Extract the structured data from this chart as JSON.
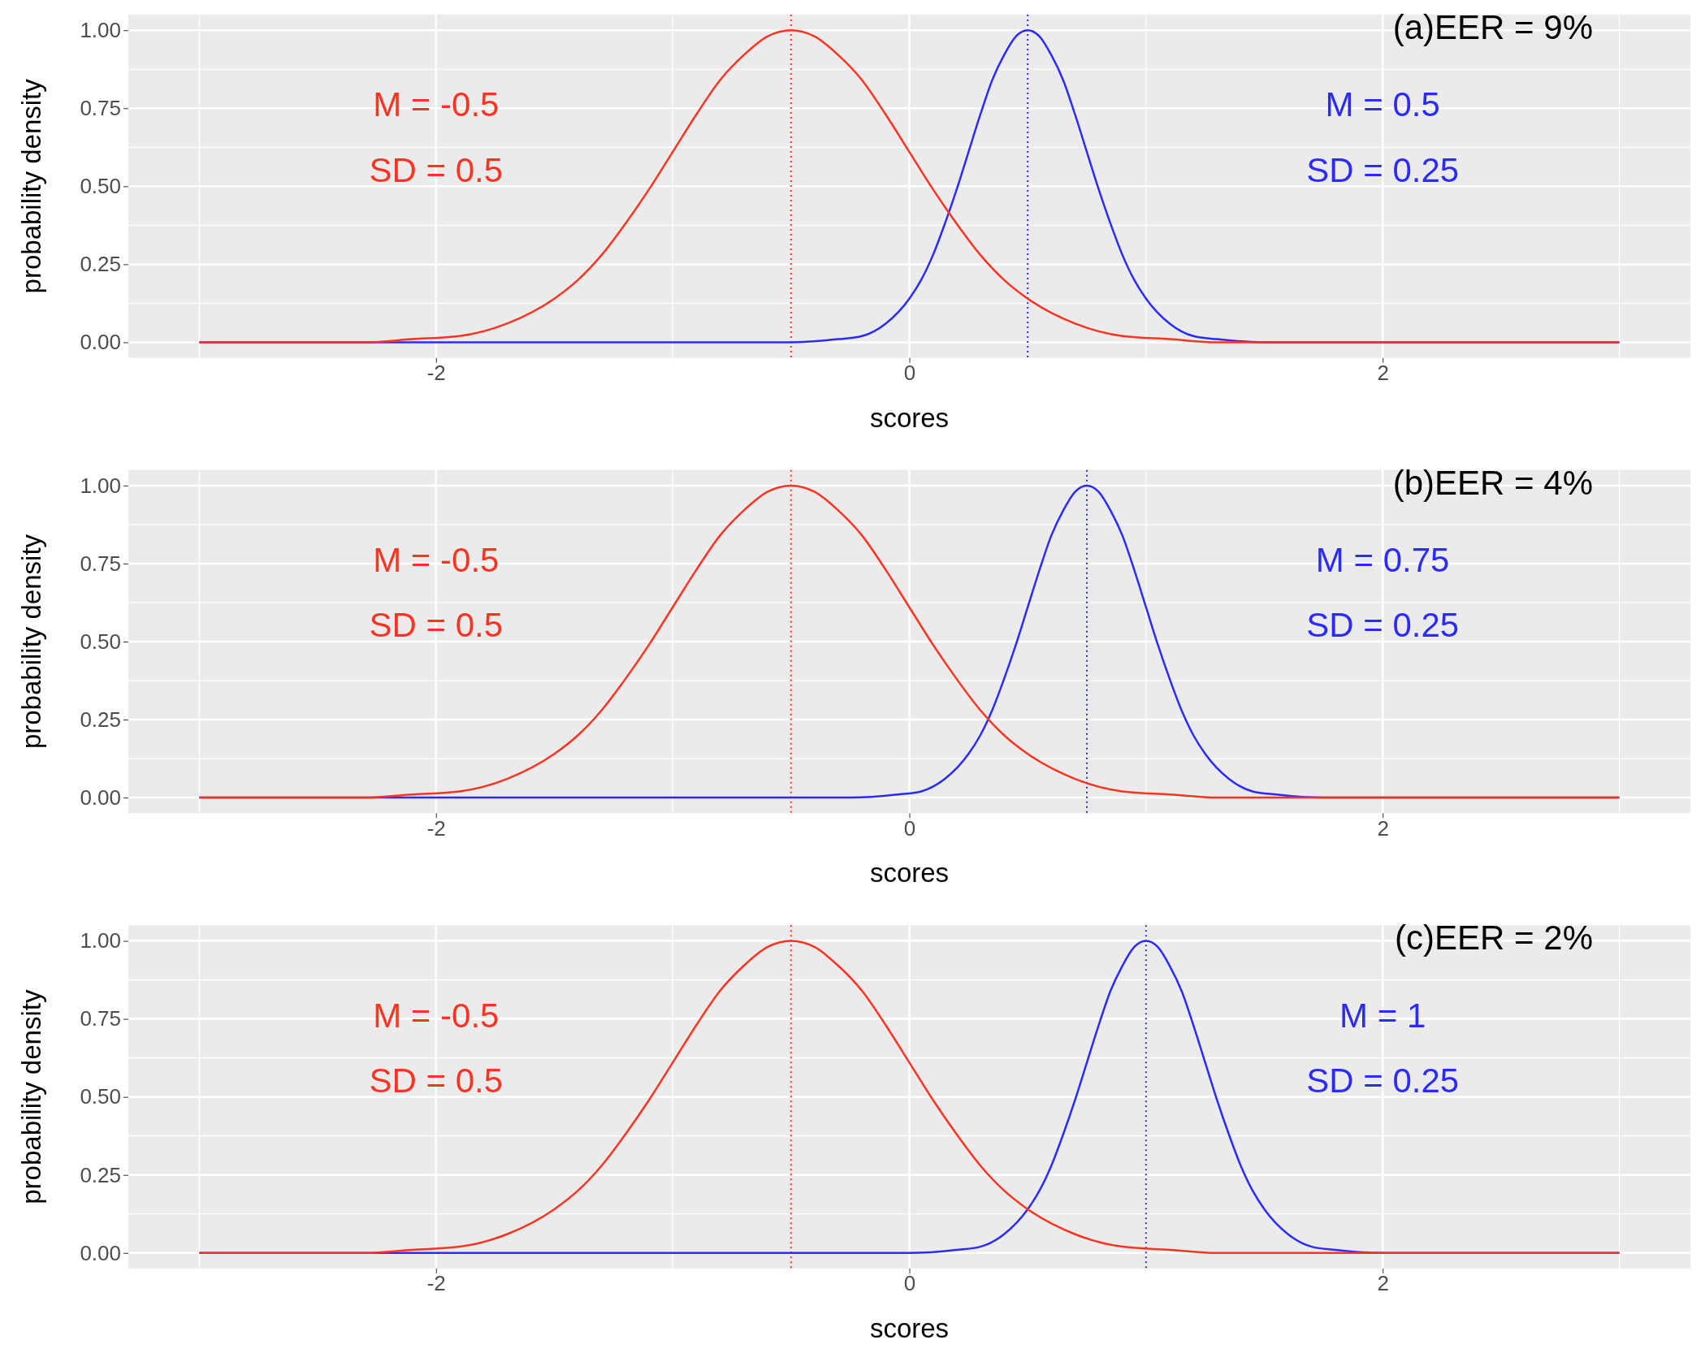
{
  "chart_data": [
    {
      "type": "line",
      "title": "(a)EER = 9%",
      "xlabel": "scores",
      "ylabel": "probability density",
      "xlim": [
        -3.3,
        3.3
      ],
      "xticks": [
        -2,
        0,
        2
      ],
      "ylim": [
        -0.05,
        1.05
      ],
      "yticks": [
        {
          "value": 0,
          "label": "0.00"
        },
        {
          "value": 0.25,
          "label": "0.25"
        },
        {
          "value": 0.5,
          "label": "0.50"
        },
        {
          "value": 0.75,
          "label": "0.75"
        },
        {
          "value": 1,
          "label": "1.00"
        }
      ],
      "grid": true,
      "line_style": "solid",
      "series": [
        {
          "color": "#2b2bff",
          "x": [
            -3,
            -0.5,
            -0.3,
            -0.2,
            -0.1,
            0,
            0.05,
            0.1,
            0.15,
            0.2,
            0.25,
            0.3,
            0.35,
            0.4,
            0.45,
            0.5,
            0.55,
            0.6,
            0.65,
            0.7,
            0.75,
            0.8,
            0.85,
            0.9,
            0.95,
            1.0,
            1.1,
            1.2,
            1.3,
            1.5,
            3
          ],
          "values": [
            0,
            0,
            0.01,
            0.02,
            0.06,
            0.14,
            0.2,
            0.28,
            0.38,
            0.49,
            0.61,
            0.73,
            0.84,
            0.92,
            0.98,
            1,
            0.98,
            0.92,
            0.84,
            0.73,
            0.61,
            0.49,
            0.38,
            0.28,
            0.2,
            0.14,
            0.06,
            0.02,
            0.01,
            0,
            0
          ]
        },
        {
          "color": "#ff3322",
          "x": [
            -3,
            -2.5,
            -2.3,
            -2.1,
            -1.9,
            -1.7,
            -1.5,
            -1.4,
            -1.3,
            -1.2,
            -1.1,
            -1.0,
            -0.9,
            -0.8,
            -0.7,
            -0.6,
            -0.5,
            -0.4,
            -0.3,
            -0.2,
            -0.1,
            0,
            0.1,
            0.2,
            0.3,
            0.4,
            0.5,
            0.7,
            0.9,
            1.1,
            1.3,
            1.5,
            3
          ],
          "values": [
            0,
            0,
            0,
            0.01,
            0.02,
            0.06,
            0.14,
            0.2,
            0.28,
            0.38,
            0.49,
            0.61,
            0.73,
            0.84,
            0.92,
            0.98,
            1,
            0.98,
            0.92,
            0.84,
            0.73,
            0.61,
            0.49,
            0.38,
            0.28,
            0.2,
            0.14,
            0.06,
            0.02,
            0.01,
            0,
            0,
            0
          ]
        }
      ],
      "ref_lines": [
        {
          "axis": "x",
          "value": -0.5,
          "color": "#ff3322",
          "line_style": "dotted"
        },
        {
          "axis": "x",
          "value": 0.5,
          "color": "#2b2bff",
          "line_style": "dotted"
        }
      ],
      "annotations": [
        "M = -0.5",
        "SD = 0.5",
        "M = 0.5",
        "SD = 0.25"
      ]
    },
    {
      "type": "line",
      "title": "(b)EER = 4%",
      "xlabel": "scores",
      "ylabel": "probability density",
      "xlim": [
        -3.3,
        3.3
      ],
      "xticks": [
        -2,
        0,
        2
      ],
      "ylim": [
        -0.05,
        1.05
      ],
      "yticks": [
        {
          "value": 0,
          "label": "0.00"
        },
        {
          "value": 0.25,
          "label": "0.25"
        },
        {
          "value": 0.5,
          "label": "0.50"
        },
        {
          "value": 0.75,
          "label": "0.75"
        },
        {
          "value": 1,
          "label": "1.00"
        }
      ],
      "grid": true,
      "line_style": "solid",
      "series": [
        {
          "color": "#2b2bff",
          "x": [
            -3,
            -0.25,
            -0.05,
            0.05,
            0.15,
            0.25,
            0.3,
            0.35,
            0.4,
            0.45,
            0.5,
            0.55,
            0.6,
            0.65,
            0.7,
            0.75,
            0.8,
            0.85,
            0.9,
            0.95,
            1.0,
            1.05,
            1.1,
            1.15,
            1.2,
            1.25,
            1.35,
            1.45,
            1.55,
            1.75,
            3
          ],
          "values": [
            0,
            0,
            0.01,
            0.02,
            0.06,
            0.14,
            0.2,
            0.28,
            0.38,
            0.49,
            0.61,
            0.73,
            0.84,
            0.92,
            0.98,
            1,
            0.98,
            0.92,
            0.84,
            0.73,
            0.61,
            0.49,
            0.38,
            0.28,
            0.2,
            0.14,
            0.06,
            0.02,
            0.01,
            0,
            0
          ]
        },
        {
          "color": "#ff3322",
          "x": [
            -3,
            -2.5,
            -2.3,
            -2.1,
            -1.9,
            -1.7,
            -1.5,
            -1.4,
            -1.3,
            -1.2,
            -1.1,
            -1.0,
            -0.9,
            -0.8,
            -0.7,
            -0.6,
            -0.5,
            -0.4,
            -0.3,
            -0.2,
            -0.1,
            0,
            0.1,
            0.2,
            0.3,
            0.4,
            0.5,
            0.7,
            0.9,
            1.1,
            1.3,
            1.5,
            3
          ],
          "values": [
            0,
            0,
            0,
            0.01,
            0.02,
            0.06,
            0.14,
            0.2,
            0.28,
            0.38,
            0.49,
            0.61,
            0.73,
            0.84,
            0.92,
            0.98,
            1,
            0.98,
            0.92,
            0.84,
            0.73,
            0.61,
            0.49,
            0.38,
            0.28,
            0.2,
            0.14,
            0.06,
            0.02,
            0.01,
            0,
            0,
            0
          ]
        }
      ],
      "ref_lines": [
        {
          "axis": "x",
          "value": -0.5,
          "color": "#ff3322",
          "line_style": "dotted"
        },
        {
          "axis": "x",
          "value": 0.75,
          "color": "#2b2bff",
          "line_style": "dotted"
        }
      ],
      "annotations": [
        "M = -0.5",
        "SD = 0.5",
        "M = 0.75",
        "SD = 0.25"
      ]
    },
    {
      "type": "line",
      "title": "(c)EER = 2%",
      "xlabel": "scores",
      "ylabel": "probability density",
      "xlim": [
        -3.3,
        3.3
      ],
      "xticks": [
        -2,
        0,
        2
      ],
      "ylim": [
        -0.05,
        1.05
      ],
      "yticks": [
        {
          "value": 0,
          "label": "0.00"
        },
        {
          "value": 0.25,
          "label": "0.25"
        },
        {
          "value": 0.5,
          "label": "0.50"
        },
        {
          "value": 0.75,
          "label": "0.75"
        },
        {
          "value": 1,
          "label": "1.00"
        }
      ],
      "grid": true,
      "line_style": "solid",
      "series": [
        {
          "color": "#2b2bff",
          "x": [
            -3,
            0,
            0.2,
            0.3,
            0.4,
            0.5,
            0.55,
            0.6,
            0.65,
            0.7,
            0.75,
            0.8,
            0.85,
            0.9,
            0.95,
            1,
            1.05,
            1.1,
            1.15,
            1.2,
            1.25,
            1.3,
            1.35,
            1.4,
            1.45,
            1.5,
            1.6,
            1.7,
            1.8,
            2,
            3
          ],
          "values": [
            0,
            0,
            0.01,
            0.02,
            0.06,
            0.14,
            0.2,
            0.28,
            0.38,
            0.49,
            0.61,
            0.73,
            0.84,
            0.92,
            0.98,
            1,
            0.98,
            0.92,
            0.84,
            0.73,
            0.61,
            0.49,
            0.38,
            0.28,
            0.2,
            0.14,
            0.06,
            0.02,
            0.01,
            0,
            0
          ]
        },
        {
          "color": "#ff3322",
          "x": [
            -3,
            -2.5,
            -2.3,
            -2.1,
            -1.9,
            -1.7,
            -1.5,
            -1.4,
            -1.3,
            -1.2,
            -1.1,
            -1.0,
            -0.9,
            -0.8,
            -0.7,
            -0.6,
            -0.5,
            -0.4,
            -0.3,
            -0.2,
            -0.1,
            0,
            0.1,
            0.2,
            0.3,
            0.4,
            0.5,
            0.7,
            0.9,
            1.1,
            1.3,
            1.5,
            3
          ],
          "values": [
            0,
            0,
            0,
            0.01,
            0.02,
            0.06,
            0.14,
            0.2,
            0.28,
            0.38,
            0.49,
            0.61,
            0.73,
            0.84,
            0.92,
            0.98,
            1,
            0.98,
            0.92,
            0.84,
            0.73,
            0.61,
            0.49,
            0.38,
            0.28,
            0.2,
            0.14,
            0.06,
            0.02,
            0.01,
            0,
            0,
            0
          ]
        }
      ],
      "ref_lines": [
        {
          "axis": "x",
          "value": -0.5,
          "color": "#ff3322",
          "line_style": "dotted"
        },
        {
          "axis": "x",
          "value": 1,
          "color": "#2b2bff",
          "line_style": "dotted"
        }
      ],
      "annotations": [
        "M = -0.5",
        "SD = 0.5",
        "M = 1",
        "SD = 0.25"
      ]
    }
  ]
}
